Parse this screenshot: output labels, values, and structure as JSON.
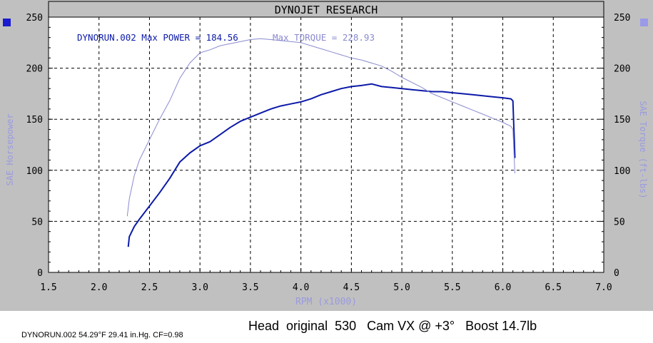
{
  "header_title": "DYNOJET RESEARCH",
  "annotations": {
    "power": "DYNORUN.002 Max POWER = 184.56",
    "torque": "Max TORQUE = 228.93"
  },
  "footer": {
    "run_info": "DYNORUN.002 54.29°F 29.41 in.Hg. CF=0.98",
    "setup": "Head  original  530   Cam VX @ +3°   Boost 14.7lb"
  },
  "colors": {
    "power": "#0c1aa8",
    "torque": "#8a8ad0",
    "panel": "#c0c0c0",
    "legend_left": "#1a1ad0",
    "legend_right": "#9a9ae8"
  },
  "chart_data": {
    "type": "line",
    "title": "DYNOJET RESEARCH",
    "xlabel": "RPM (x1000)",
    "ylabel": "SAE Horsepower",
    "ylabel_right": "SAE Torque (ft-lbs)",
    "xlim": [
      1.5,
      7.0
    ],
    "ylim": [
      0,
      250
    ],
    "x_ticks": [
      "1.5",
      "2.0",
      "2.5",
      "3.0",
      "3.5",
      "4.0",
      "4.5",
      "5.0",
      "5.5",
      "6.0",
      "6.5",
      "7.0"
    ],
    "y_ticks": [
      "0",
      "50",
      "100",
      "150",
      "200",
      "250"
    ],
    "grid": true,
    "series": [
      {
        "name": "Max POWER",
        "axis": "left",
        "points": [
          [
            2.29,
            25
          ],
          [
            2.3,
            35
          ],
          [
            2.35,
            45
          ],
          [
            2.4,
            52
          ],
          [
            2.5,
            65
          ],
          [
            2.6,
            78
          ],
          [
            2.7,
            92
          ],
          [
            2.75,
            100
          ],
          [
            2.8,
            108
          ],
          [
            2.9,
            117
          ],
          [
            3.0,
            124
          ],
          [
            3.1,
            128
          ],
          [
            3.2,
            135
          ],
          [
            3.3,
            142
          ],
          [
            3.4,
            148
          ],
          [
            3.5,
            152
          ],
          [
            3.6,
            156
          ],
          [
            3.7,
            160
          ],
          [
            3.8,
            163
          ],
          [
            3.9,
            165
          ],
          [
            4.0,
            167
          ],
          [
            4.1,
            170
          ],
          [
            4.2,
            174
          ],
          [
            4.3,
            177
          ],
          [
            4.4,
            180
          ],
          [
            4.5,
            182
          ],
          [
            4.6,
            183
          ],
          [
            4.7,
            184.56
          ],
          [
            4.8,
            182
          ],
          [
            4.9,
            181
          ],
          [
            5.0,
            180
          ],
          [
            5.1,
            179
          ],
          [
            5.2,
            178
          ],
          [
            5.3,
            177
          ],
          [
            5.4,
            177
          ],
          [
            5.5,
            176
          ],
          [
            5.6,
            175
          ],
          [
            5.7,
            174
          ],
          [
            5.8,
            173
          ],
          [
            5.9,
            172
          ],
          [
            6.0,
            171
          ],
          [
            6.08,
            170
          ],
          [
            6.1,
            168
          ],
          [
            6.11,
            140
          ],
          [
            6.12,
            112
          ]
        ]
      },
      {
        "name": "Max TORQUE",
        "axis": "right",
        "points": [
          [
            2.28,
            55
          ],
          [
            2.3,
            72
          ],
          [
            2.35,
            95
          ],
          [
            2.4,
            110
          ],
          [
            2.5,
            130
          ],
          [
            2.6,
            150
          ],
          [
            2.7,
            168
          ],
          [
            2.8,
            190
          ],
          [
            2.9,
            205
          ],
          [
            3.0,
            215
          ],
          [
            3.1,
            218
          ],
          [
            3.2,
            222
          ],
          [
            3.3,
            224
          ],
          [
            3.4,
            226
          ],
          [
            3.5,
            228
          ],
          [
            3.6,
            228.93
          ],
          [
            3.7,
            228
          ],
          [
            3.8,
            227
          ],
          [
            3.9,
            226
          ],
          [
            4.0,
            225
          ],
          [
            4.1,
            222
          ],
          [
            4.2,
            219
          ],
          [
            4.3,
            216
          ],
          [
            4.4,
            213
          ],
          [
            4.5,
            210
          ],
          [
            4.6,
            208
          ],
          [
            4.7,
            205
          ],
          [
            4.8,
            202
          ],
          [
            4.9,
            197
          ],
          [
            5.0,
            191
          ],
          [
            5.1,
            186
          ],
          [
            5.2,
            181
          ],
          [
            5.3,
            175
          ],
          [
            5.4,
            171
          ],
          [
            5.5,
            167
          ],
          [
            5.6,
            163
          ],
          [
            5.7,
            159
          ],
          [
            5.8,
            155
          ],
          [
            5.9,
            151
          ],
          [
            6.0,
            147
          ],
          [
            6.08,
            143
          ],
          [
            6.1,
            140
          ],
          [
            6.11,
            118
          ],
          [
            6.12,
            97
          ]
        ]
      }
    ]
  }
}
